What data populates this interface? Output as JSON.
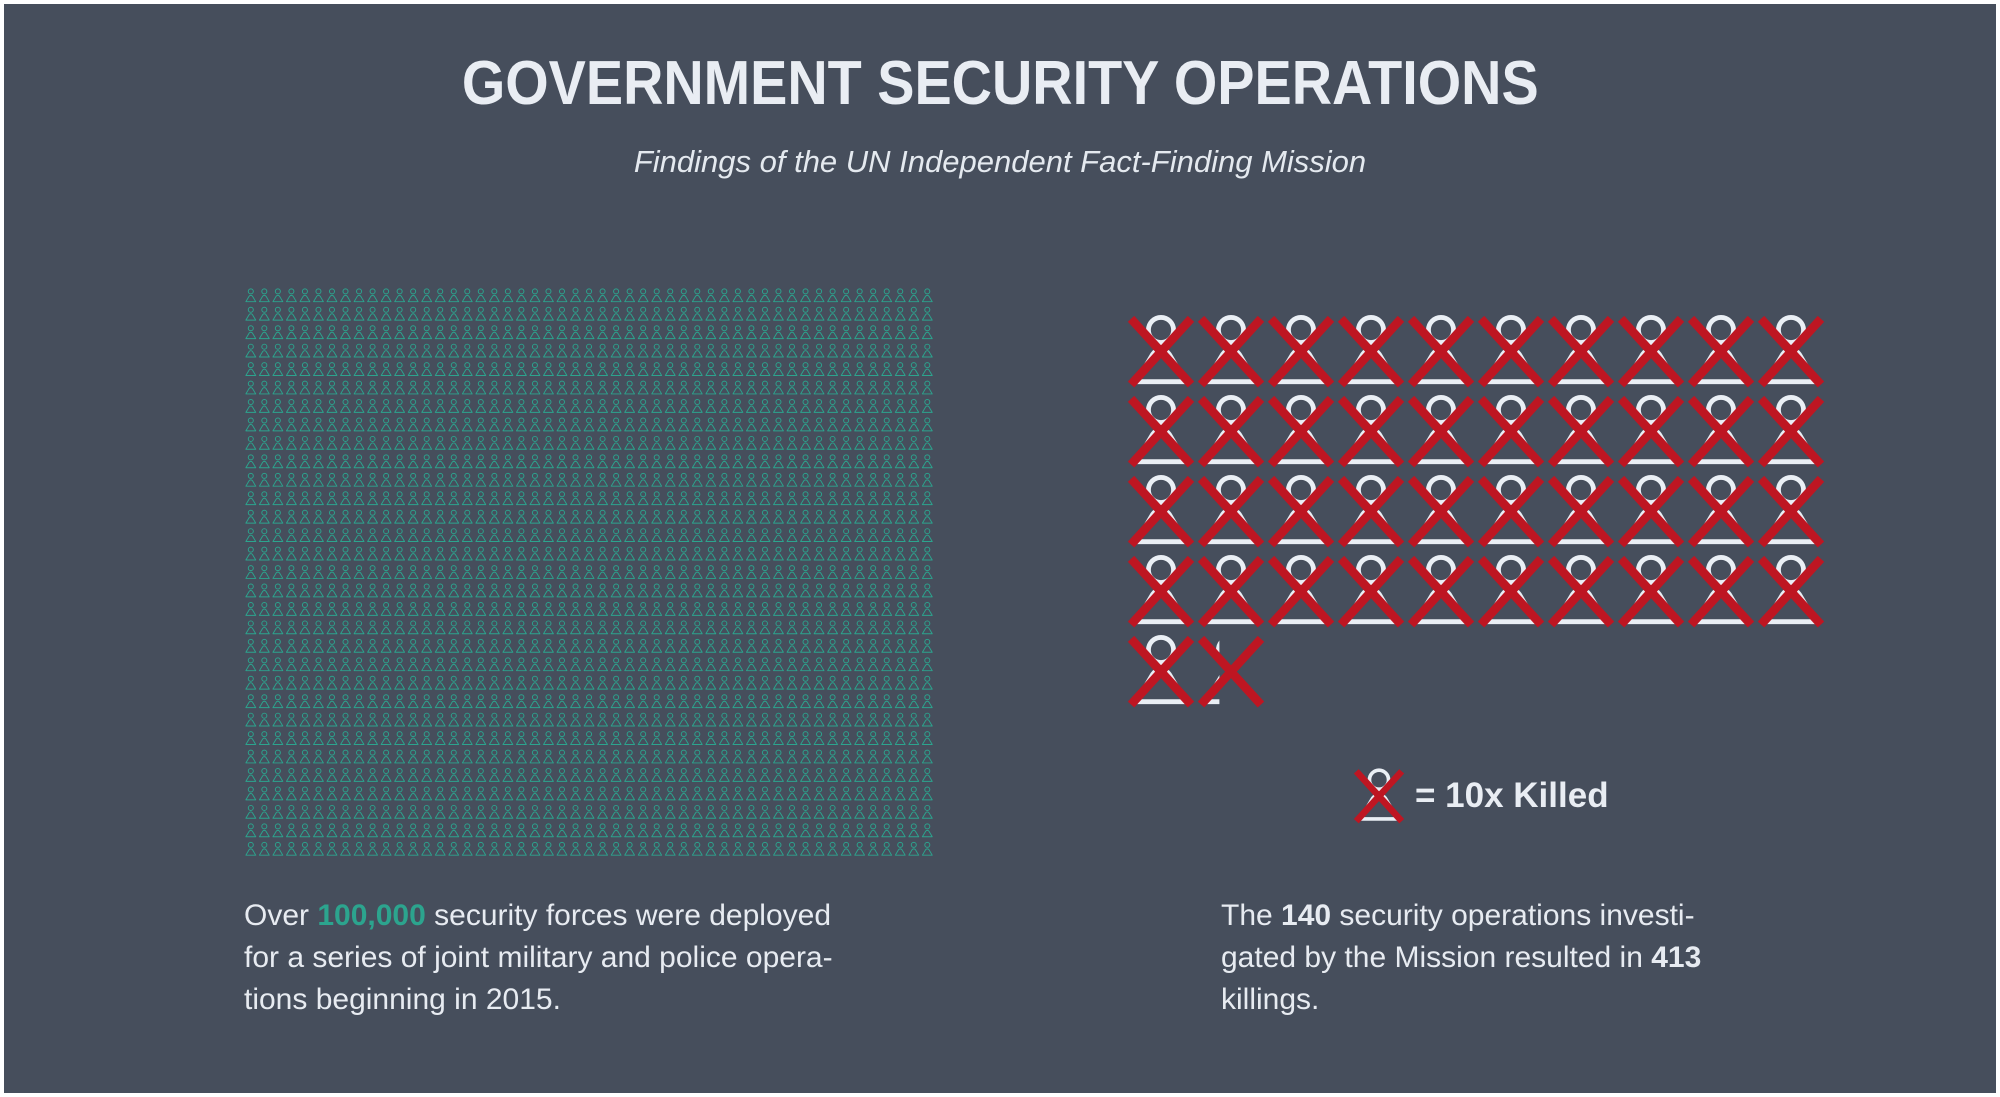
{
  "page": {
    "background_color": "#464E5C",
    "frame_color": "#FFFFFF",
    "text_color": "#E7EBF1"
  },
  "header": {
    "title": "GOVERNMENT SECURITY OPERATIONS",
    "subtitle": "Findings of the UN Independent Fact-Finding Mission"
  },
  "chart_data": [
    {
      "type": "pictogram",
      "name": "security-forces-deployed",
      "icon": "person-outline",
      "icon_color": "#2CA48E",
      "columns": 51,
      "rows": 31,
      "total_icons": 1581,
      "value_label": "Over 100,000",
      "annotation": "Over 100,000 security forces were deployed for a series of joint military and police operations beginning in 2015."
    },
    {
      "type": "pictogram",
      "name": "killings-in-operations",
      "icon": "person-crossed-out",
      "icon_color": "#EAEFF5",
      "cross_color": "#BE1622",
      "columns": 10,
      "full_icons": 41,
      "partial_icon_fraction": 0.3,
      "unit_value": 10,
      "unit_label": "= 10x Killed",
      "total_value": 413,
      "operations_count": 140,
      "annotation": "The 140 security operations investigated by the Mission resulted in 413 killings."
    }
  ],
  "left_caption": {
    "lines": [
      [
        {
          "t": "Over "
        },
        {
          "t": "100,000",
          "hl": true
        },
        {
          "t": " security forces were deployed"
        }
      ],
      [
        {
          "t": "for a series of joint military and police opera-"
        }
      ],
      [
        {
          "t": "tions beginning in 2015."
        }
      ]
    ]
  },
  "right_caption": {
    "lines": [
      [
        {
          "t": "The "
        },
        {
          "t": "140",
          "b": true
        },
        {
          "t": " security operations investi-"
        }
      ],
      [
        {
          "t": "gated by the Mission resulted in "
        },
        {
          "t": "413",
          "b": true
        }
      ],
      [
        {
          "t": "killings."
        }
      ]
    ]
  }
}
